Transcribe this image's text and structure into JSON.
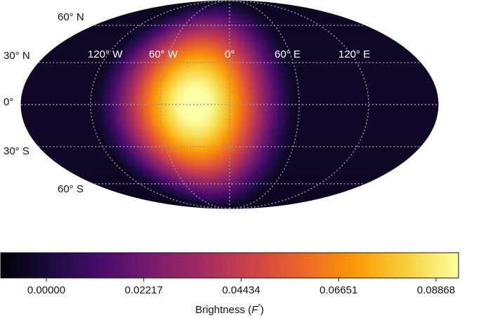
{
  "chart_data": {
    "type": "heatmap",
    "projection": "Mollweide",
    "title": "",
    "colormap": "inferno",
    "latitude_labels": [
      "60° N",
      "30° N",
      "0°",
      "30° S",
      "60° S"
    ],
    "longitude_labels": [
      "120° W",
      "60° W",
      "0°",
      "60° E",
      "120° E"
    ],
    "hotspot": {
      "longitude": "30° W",
      "latitude": "0°",
      "value": 0.08868
    },
    "colorbar": {
      "min": 0.0,
      "max": 0.08868,
      "ticks": [
        "0.00000",
        "0.02217",
        "0.04434",
        "0.06651",
        "0.08868"
      ],
      "label": "Brightness (F*)",
      "label_main": "Brightness (",
      "label_symbol": "F",
      "label_superscript": "*",
      "label_close": ")"
    },
    "grid": true,
    "grid_style": "dotted",
    "colors": {
      "stop_0": "#000004",
      "stop_1": "#1b0c41",
      "stop_2": "#4a0c6b",
      "stop_3": "#781c6d",
      "stop_4": "#a52c60",
      "stop_5": "#cf4446",
      "stop_6": "#ed6925",
      "stop_7": "#fb9b06",
      "stop_8": "#f7d13d",
      "stop_9": "#fcffa4",
      "grid": "#9a9a9a"
    }
  }
}
